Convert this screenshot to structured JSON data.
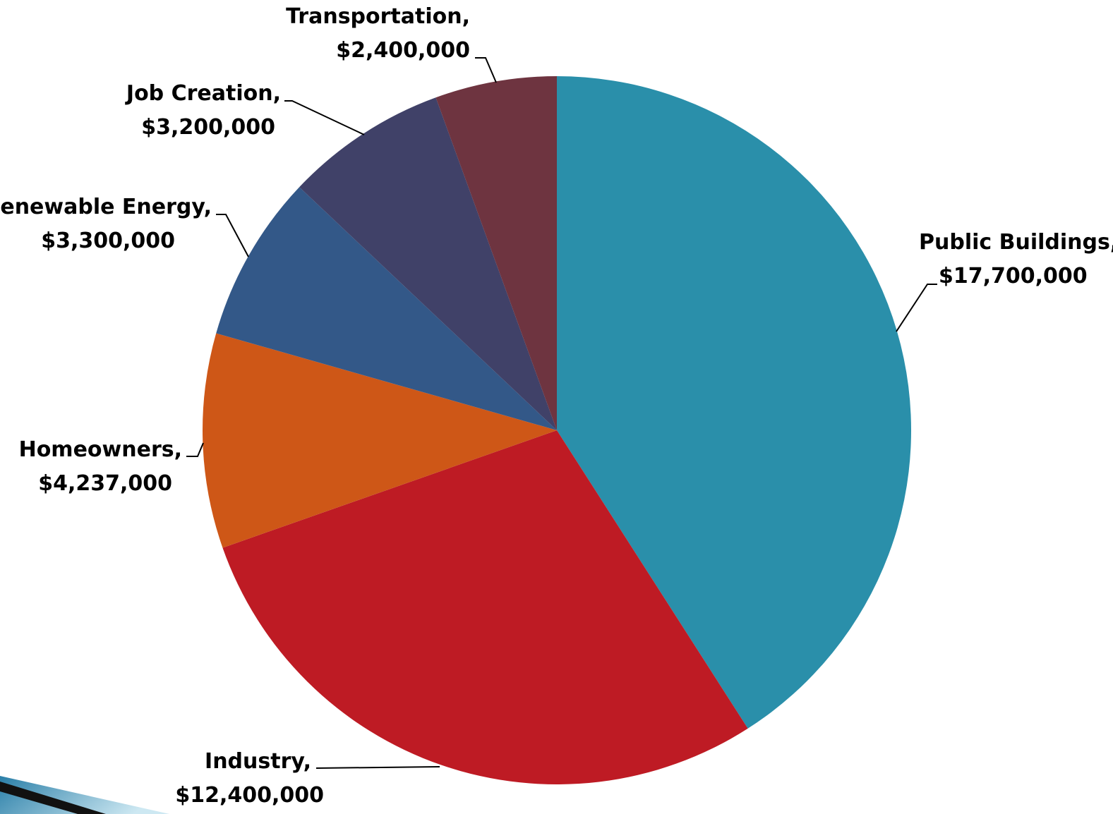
{
  "chart_data": {
    "type": "pie",
    "title": "",
    "slices": [
      {
        "label": "Public Buildings,",
        "value_label": "$17,700,000",
        "value": 17700000,
        "color": "#2A8FAA"
      },
      {
        "label": "Industry,",
        "value_label": "$12,400,000",
        "value": 12400000,
        "color": "#BE1B24"
      },
      {
        "label": "Homeowners,",
        "value_label": "$4,237,000",
        "value": 4237000,
        "color": "#CE5717"
      },
      {
        "label": "Renewable Energy,",
        "value_label": "$3,300,000",
        "value": 3300000,
        "color": "#335888"
      },
      {
        "label": "Job Creation,",
        "value_label": "$3,200,000",
        "value": 3200000,
        "color": "#404168"
      },
      {
        "label": "Transportation,",
        "value_label": "$2,400,000",
        "value": 2400000,
        "color": "#6E3440"
      }
    ]
  }
}
